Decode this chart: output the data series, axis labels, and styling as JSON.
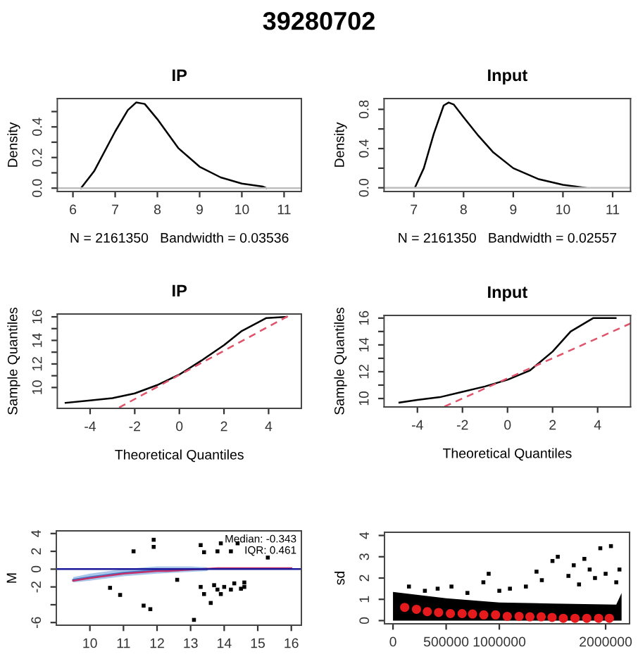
{
  "chart_data": [
    {
      "type": "line",
      "title": "IP",
      "xlabel": "N = 2161350   Bandwidth = 0.03536",
      "ylabel": "Density",
      "annotations": [
        "39280702"
      ],
      "xlim": [
        5.63,
        11.41
      ],
      "ylim": [
        -0.022,
        0.585
      ],
      "xticks": [
        6,
        7,
        8,
        9,
        10,
        11
      ],
      "yticks": [
        {
          "value": 0,
          "label": "0.0"
        },
        {
          "value": 0.1,
          "label": null
        },
        0.2,
        {
          "value": 0.3,
          "label": null
        },
        0.4,
        {
          "value": 0.5,
          "label": null
        }
      ],
      "ref_lines": [
        {
          "axis": "y",
          "value": 0,
          "color": "#bebebe"
        }
      ],
      "series": [
        {
          "color": "#000000",
          "x": [
            6.19,
            6.5,
            7,
            7.3,
            7.5,
            7.7,
            8,
            8.5,
            9,
            9.5,
            10,
            10.5,
            10.58
          ],
          "values": [
            0,
            0.11,
            0.37,
            0.51,
            0.56,
            0.55,
            0.45,
            0.26,
            0.14,
            0.07,
            0.03,
            0.01,
            0
          ]
        }
      ]
    },
    {
      "type": "line",
      "title": "Input",
      "xlabel": "N = 2161350   Bandwidth = 0.02557",
      "ylabel": "Density",
      "xlim": [
        6.4,
        11.36
      ],
      "ylim": [
        -0.038,
        0.91
      ],
      "xticks": [
        7,
        8,
        9,
        10,
        11
      ],
      "yticks": [
        {
          "value": 0,
          "label": "0.0"
        },
        {
          "value": 0.2,
          "label": null
        },
        0.4,
        {
          "value": 0.6,
          "label": null
        },
        0.8
      ],
      "ref_lines": [
        {
          "axis": "y",
          "value": 0,
          "color": "#bebebe"
        }
      ],
      "series": [
        {
          "color": "#000000",
          "x": [
            7.02,
            7.2,
            7.4,
            7.6,
            7.7,
            7.8,
            8,
            8.3,
            8.6,
            9,
            9.5,
            10,
            10.46
          ],
          "values": [
            0,
            0.2,
            0.55,
            0.84,
            0.87,
            0.85,
            0.72,
            0.53,
            0.36,
            0.2,
            0.09,
            0.03,
            0
          ]
        }
      ]
    },
    {
      "type": "line",
      "title": "IP",
      "xlabel": "Theoretical Quantiles",
      "ylabel": "Sample Quantiles",
      "xlim": [
        -5.47,
        5.47
      ],
      "ylim": [
        8.23,
        16.24
      ],
      "xticks": [
        -4,
        -2,
        0,
        2,
        4
      ],
      "yticks": [
        10,
        {
          "value": 11,
          "label": null
        },
        12,
        {
          "value": 13,
          "label": null
        },
        14,
        {
          "value": 15,
          "label": null
        },
        16
      ],
      "series": [
        {
          "color": "#000000",
          "line_style": "solid",
          "x": [
            -5.1,
            -4,
            -3,
            -2,
            -1,
            0,
            1,
            2,
            2.8,
            3.5,
            3.9,
            4.8
          ],
          "values": [
            8.7,
            8.9,
            9.1,
            9.5,
            10.2,
            11.1,
            12.3,
            13.6,
            14.8,
            15.5,
            15.9,
            16
          ]
        },
        {
          "color": "#df536b",
          "line_style": "dashed",
          "x": [
            -2.7,
            5.0
          ],
          "values": [
            8.3,
            16.2
          ]
        }
      ]
    },
    {
      "type": "line",
      "title": "Input",
      "xlabel": "Theoretical Quantiles",
      "ylabel": "Sample Quantiles",
      "xlim": [
        -5.48,
        5.46
      ],
      "ylim": [
        9.37,
        16.2
      ],
      "xticks": [
        -4,
        -2,
        0,
        2,
        4
      ],
      "yticks": [
        10,
        {
          "value": 11,
          "label": null
        },
        12,
        {
          "value": 13,
          "label": null
        },
        14,
        {
          "value": 15,
          "label": null
        },
        16
      ],
      "series": [
        {
          "color": "#000000",
          "line_style": "solid",
          "x": [
            -4.8,
            -4,
            -3,
            -2,
            -1,
            0,
            1,
            2,
            2.8,
            3.8,
            4.8
          ],
          "values": [
            9.7,
            9.9,
            10.1,
            10.5,
            10.9,
            11.4,
            12.1,
            13.5,
            15.0,
            16,
            16
          ]
        },
        {
          "color": "#df536b",
          "line_style": "dashed",
          "x": [
            -2.8,
            5.46
          ],
          "values": [
            9.4,
            15.6
          ]
        }
      ]
    },
    {
      "type": "scatter",
      "ylabel": "M",
      "annotations": [
        "Median: -0.343",
        "IQR: 0.461"
      ],
      "xlim": [
        9.0,
        16.3
      ],
      "ylim": [
        -6.3,
        4.3
      ],
      "xticks": [
        10,
        11,
        12,
        13,
        14,
        15,
        16
      ],
      "yticks": [
        -6,
        {
          "value": -4,
          "label": null
        },
        -2,
        0,
        2,
        4
      ],
      "ref_lines": [
        {
          "axis": "y",
          "value": 0,
          "color": "#1a1a9a"
        }
      ],
      "series": [
        {
          "type": "line",
          "color": "#3a78c8",
          "x": [
            9.5,
            10,
            11,
            12,
            13,
            13.5
          ],
          "values": [
            -1.2,
            -0.9,
            -0.4,
            -0.1,
            0,
            0
          ],
          "lower": [
            -1.5,
            -1.3,
            -0.8,
            -0.5,
            -0.3,
            -0.2
          ],
          "upper": [
            -0.9,
            -0.5,
            0.0,
            0.3,
            0.3,
            0.2
          ]
        },
        {
          "type": "line",
          "color": "#c0306a",
          "x": [
            9.5,
            10,
            11,
            12,
            12.3,
            13.8,
            16
          ],
          "values": [
            -1.3,
            -1.0,
            -0.5,
            -0.2,
            -0.2,
            0.1,
            0.1
          ]
        },
        {
          "type": "scatter",
          "color": "#000000",
          "marker": "square",
          "x": [
            11.9,
            11.9,
            11.3,
            10.6,
            10.9,
            11.6,
            11.8,
            13.1,
            13.3,
            13.4,
            13.8,
            13.9,
            14.2,
            14.4,
            15.3,
            13.3,
            13.4,
            13.6,
            13.7,
            13.8,
            13.9,
            14.0,
            14.2,
            14.3,
            14.5,
            14.6,
            14.6,
            12.6
          ],
          "values": [
            3.3,
            2.5,
            2.0,
            -2.1,
            -2.9,
            -4.1,
            -4.5,
            -5.7,
            2.7,
            1.9,
            2.0,
            2.9,
            2.0,
            2.9,
            1.3,
            -2.0,
            -2.8,
            -3.8,
            -1.8,
            -2.3,
            -2.8,
            -2.0,
            -2.3,
            -1.6,
            -2.2,
            -2.0,
            -1.5,
            -1.2
          ]
        }
      ]
    },
    {
      "type": "scatter",
      "ylabel": "sd",
      "xlim": [
        -80000,
        2225000
      ],
      "ylim": [
        -0.15,
        4.15
      ],
      "xticks": [
        0,
        500000,
        1000000,
        2000000
      ],
      "yticks": [
        0,
        1,
        2,
        3,
        4
      ],
      "series": [
        {
          "type": "area",
          "color": "#000000",
          "x": [
            0,
            500000,
            1000000,
            1500000,
            2100000,
            2150000
          ],
          "values": [
            1.35,
            1.05,
            0.85,
            0.8,
            0.75,
            1.3
          ]
        },
        {
          "type": "scatter",
          "color": "#000000",
          "marker": "square",
          "x": [
            150000,
            300000,
            420000,
            550000,
            700000,
            850000,
            900000,
            1000000,
            1100000,
            1250000,
            1350000,
            1400000,
            1500000,
            1550000,
            1650000,
            1700000,
            1750000,
            1800000,
            1850000,
            1900000,
            1950000,
            2000000,
            2050000,
            2100000,
            2130000
          ],
          "values": [
            1.6,
            1.4,
            1.5,
            1.6,
            1.3,
            1.8,
            2.2,
            1.4,
            1.5,
            1.6,
            2.3,
            1.9,
            2.8,
            3.0,
            2.1,
            2.6,
            1.7,
            2.9,
            2.4,
            2.0,
            3.4,
            2.2,
            3.5,
            1.8,
            2.4
          ]
        },
        {
          "type": "scatter",
          "color": "#e41a1c",
          "marker": "circle",
          "x": [
            110000,
            221000,
            323000,
            429000,
            540000,
            650000,
            748000,
            854000,
            965000,
            1075000,
            1186000,
            1288000,
            1394000,
            1496000,
            1602000,
            1712000,
            1823000,
            1934000,
            2035000
          ],
          "values": [
            0.62,
            0.53,
            0.42,
            0.38,
            0.33,
            0.33,
            0.31,
            0.27,
            0.27,
            0.2,
            0.2,
            0.18,
            0.18,
            0.15,
            0.11,
            0.11,
            0.11,
            0.11,
            0.11
          ]
        }
      ]
    }
  ]
}
